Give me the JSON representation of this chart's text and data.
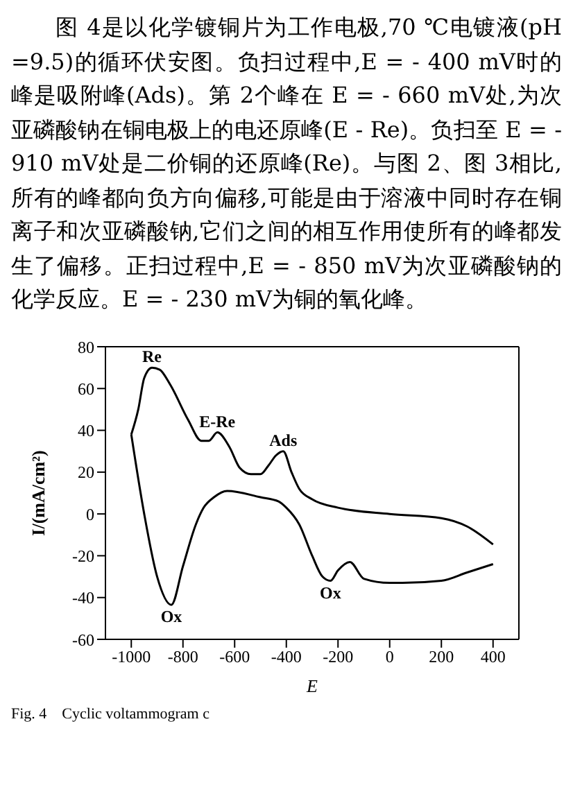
{
  "chart_data": {
    "type": "line",
    "xlabel": "E",
    "ylabel": "I/(mA/cm²)",
    "xlim": [
      -1100,
      500
    ],
    "xticks": [
      -1000,
      -800,
      -600,
      -400,
      -200,
      0,
      200,
      400
    ],
    "ylim": [
      -60,
      80
    ],
    "yticks": [
      -60,
      -40,
      -20,
      0,
      20,
      40,
      60,
      80
    ],
    "grid": false,
    "marker": "none",
    "line_style": "solid",
    "series": [
      {
        "color": "#000000",
        "x": [
          400,
          300,
          200,
          0,
          -200,
          -300,
          -350,
          -380,
          -412,
          -440,
          -470,
          -500,
          -537,
          -580,
          -620,
          -667,
          -700,
          -729,
          -780,
          -850,
          -890,
          -920,
          -950,
          -973,
          -1000
        ],
        "values": [
          -14.6,
          -6,
          -2,
          0,
          3,
          7,
          12,
          20,
          30,
          28,
          23,
          19,
          19,
          22,
          32,
          39,
          35,
          35,
          45,
          62,
          69,
          70,
          65,
          50,
          38
        ]
      },
      {
        "color": "#000000",
        "x": [
          -1000,
          -950,
          -900,
          -845,
          -800,
          -750,
          -720,
          -680,
          -629,
          -500,
          -430,
          -400,
          -350,
          -300,
          -260,
          -229,
          -200,
          -154,
          -100,
          0,
          50,
          200,
          300,
          400
        ],
        "values": [
          38,
          0,
          -30,
          -43.5,
          -25,
          -5,
          3,
          8,
          11,
          8,
          6,
          3,
          -5,
          -20,
          -30,
          -32,
          -27,
          -23,
          -31,
          -33,
          -33,
          -32,
          -28,
          -24
        ]
      }
    ],
    "annotations": [
      "图 4是以化学镀铜片为工作电极,70 ℃电镀液(pH =9.5)的循环伏安图。负扫过程中,E = - 400 mV时的峰是吸附峰(Ads)。第 2个峰在 E = - 660 mV处,为次亚磷酸钠在铜电极上的电还原峰(E - Re)。负扫至 E = - 910 mV处是二价铜的还原峰(Re)。与图 2、图 3相比,所有的峰都向负方向偏移,可能是由于溶液中同时存在铜离子和次亚磷酸钠,它们之间的相互作用使所有的峰都发生了偏移。正扫过程中,E = - 850 mV为次亚磷酸钠的化学反应。E = - 230 mV为铜的氧化峰。",
      {
        "text": "Re",
        "x": -920,
        "y": 70
      },
      {
        "text": "E-Re",
        "x": -667,
        "y": 39
      },
      {
        "text": "Ads",
        "x": -412,
        "y": 30
      },
      {
        "text": "Ox",
        "x": -845,
        "y": -43.5
      },
      {
        "text": "Ox",
        "x": -229,
        "y": -32
      },
      "Fig. 4    Cyclic voltammogram c"
    ]
  }
}
